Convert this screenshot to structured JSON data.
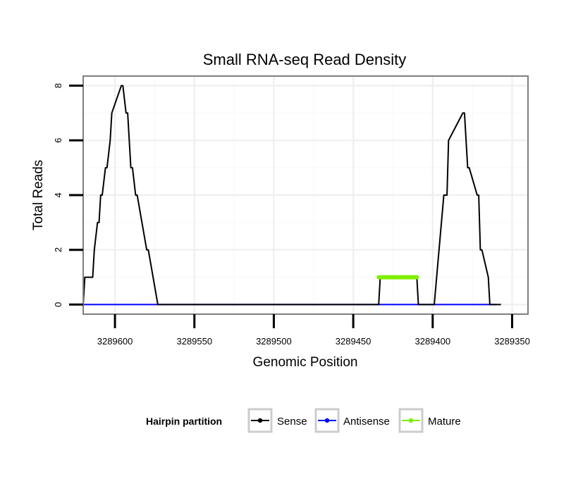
{
  "chart_data": {
    "type": "line",
    "title": "Small RNA-seq Read Density",
    "xlabel": "Genomic Position",
    "ylabel": "Total Reads",
    "xlim": [
      3289620,
      3289340
    ],
    "ylim": [
      -0.35,
      8.35
    ],
    "x_reversed": true,
    "grid": true,
    "legend_position": "bottom",
    "x_ticks": [
      3289600,
      3289550,
      3289500,
      3289450,
      3289400,
      3289350
    ],
    "x_tick_labels": [
      "3289600",
      "3289550",
      "3289500",
      "3289450",
      "3289400",
      "3289350"
    ],
    "y_ticks": [
      0,
      2,
      4,
      6,
      8
    ],
    "y_tick_labels": [
      "0",
      "2",
      "4",
      "6",
      "8"
    ],
    "legend": {
      "title": "Hairpin partition",
      "entries": [
        {
          "name": "Sense",
          "color": "#000000"
        },
        {
          "name": "Antisense",
          "color": "#0000ff"
        },
        {
          "name": "Mature",
          "color": "#80ee00"
        }
      ]
    },
    "series": [
      {
        "name": "Sense",
        "color": "#000000",
        "x": [
          3289620,
          3289619,
          3289614,
          3289613,
          3289611,
          3289610,
          3289609,
          3289608,
          3289606,
          3289605,
          3289603,
          3289602,
          3289596,
          3289595,
          3289593,
          3289592,
          3289590,
          3289589,
          3289587,
          3289586,
          3289580,
          3289579,
          3289573,
          3289572,
          3289434,
          3289433,
          3289410,
          3289409,
          3289400,
          3289399,
          3289393,
          3289392,
          3289391,
          3289390,
          3289381,
          3289380,
          3289378,
          3289377,
          3289372,
          3289371,
          3289370,
          3289369,
          3289365,
          3289364,
          3289360,
          3289359,
          3289357
        ],
        "y": [
          0,
          1,
          1,
          2,
          3,
          3,
          4,
          4,
          5,
          5,
          6,
          7,
          8,
          8,
          7,
          7,
          5,
          5,
          4,
          4,
          2,
          2,
          0,
          0,
          0,
          1,
          1,
          0,
          0,
          0,
          4,
          4,
          4,
          6,
          7,
          7,
          5,
          5,
          4,
          4,
          2,
          2,
          1,
          0,
          0,
          0,
          0
        ]
      },
      {
        "name": "Antisense",
        "color": "#0000ff",
        "x": [
          3289620,
          3289572,
          3289400,
          3289360
        ],
        "y": [
          0,
          0,
          0,
          0
        ]
      },
      {
        "name": "Mature",
        "color": "#80ee00",
        "x": [
          3289434,
          3289410
        ],
        "y": [
          1,
          1
        ]
      }
    ]
  }
}
